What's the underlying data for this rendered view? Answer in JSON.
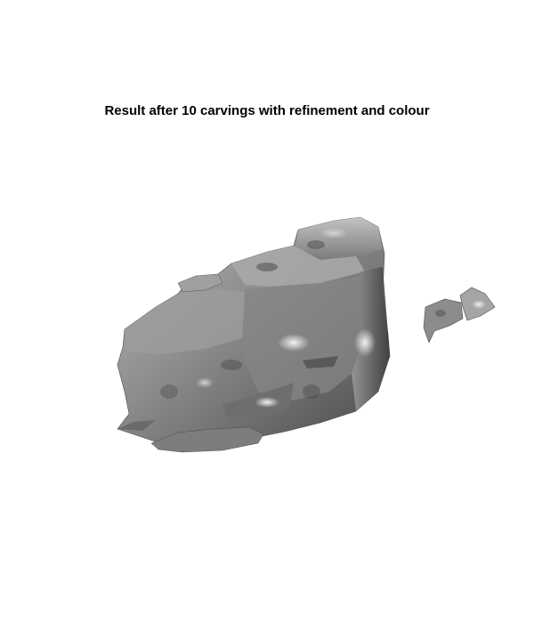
{
  "figure": {
    "title": "Result after 10 carvings with refinement and colour"
  },
  "render": {
    "surface_color": "#8f8f8f",
    "highlight_color": "#e8e8e8",
    "shadow_color": "#3a3a3a",
    "background_color": "#ffffff"
  }
}
